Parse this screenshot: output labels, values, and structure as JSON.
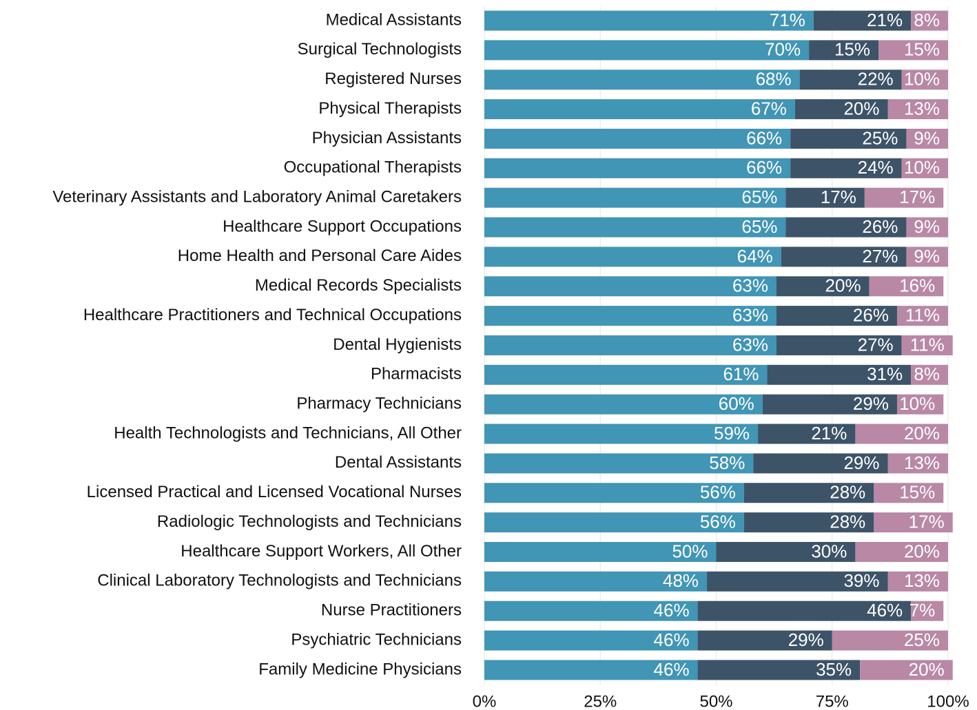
{
  "chart_data": {
    "type": "stacked-barh",
    "categories": [
      "Medical Assistants",
      "Surgical Technologists",
      "Registered Nurses",
      "Physical Therapists",
      "Physician Assistants",
      "Occupational Therapists",
      "Veterinary Assistants and Laboratory Animal Caretakers",
      "Healthcare Support Occupations",
      "Home Health and Personal Care Aides",
      "Medical Records Specialists",
      "Healthcare Practitioners and Technical Occupations",
      "Dental Hygienists",
      "Pharmacists",
      "Pharmacy Technicians",
      "Health Technologists and Technicians, All Other",
      "Dental Assistants",
      "Licensed Practical and Licensed Vocational Nurses",
      "Radiologic Technologists and Technicians",
      "Healthcare Support Workers, All Other",
      "Clinical Laboratory Technologists and Technicians",
      "Nurse Practitioners",
      "Psychiatric Technicians",
      "Family Medicine Physicians"
    ],
    "series": [
      {
        "color": "#4195b5",
        "values": [
          71,
          70,
          68,
          67,
          66,
          66,
          65,
          65,
          64,
          63,
          63,
          63,
          61,
          60,
          59,
          58,
          56,
          56,
          50,
          48,
          46,
          46,
          46
        ],
        "value_labels": [
          "71%",
          "70%",
          "68%",
          "67%",
          "66%",
          "66%",
          "65%",
          "65%",
          "64%",
          "63%",
          "63%",
          "63%",
          "61%",
          "60%",
          "59%",
          "58%",
          "56%",
          "56%",
          "50%",
          "48%",
          "46%",
          "46%",
          "46%"
        ]
      },
      {
        "color": "#3d5368",
        "values": [
          21,
          15,
          22,
          20,
          25,
          24,
          17,
          26,
          27,
          20,
          26,
          27,
          31,
          29,
          21,
          29,
          28,
          28,
          30,
          39,
          46,
          29,
          35
        ],
        "value_labels": [
          "21%",
          "15%",
          "22%",
          "20%",
          "25%",
          "24%",
          "17%",
          "26%",
          "27%",
          "20%",
          "26%",
          "27%",
          "31%",
          "29%",
          "21%",
          "29%",
          "28%",
          "28%",
          "30%",
          "39%",
          "46%",
          "29%",
          "35%"
        ]
      },
      {
        "color": "#b888a5",
        "values": [
          8,
          15,
          10,
          13,
          9,
          10,
          17,
          9,
          9,
          16,
          11,
          11,
          8,
          10,
          20,
          13,
          15,
          17,
          20,
          13,
          7,
          25,
          20
        ],
        "value_labels": [
          "8%",
          "15%",
          "10%",
          "13%",
          "9%",
          "10%",
          "17%",
          "9%",
          "9%",
          "16%",
          "11%",
          "11%",
          "8%",
          "10%",
          "20%",
          "13%",
          "15%",
          "17%",
          "20%",
          "13%",
          "7%",
          "25%",
          "20%"
        ]
      }
    ],
    "xlim": [
      0,
      100
    ],
    "xticks": [
      {
        "value": 0,
        "label": "0%"
      },
      {
        "value": 25,
        "label": "25%"
      },
      {
        "value": 50,
        "label": "50%"
      },
      {
        "value": 75,
        "label": "75%"
      },
      {
        "value": 100,
        "label": "100%"
      }
    ],
    "grid": true
  }
}
